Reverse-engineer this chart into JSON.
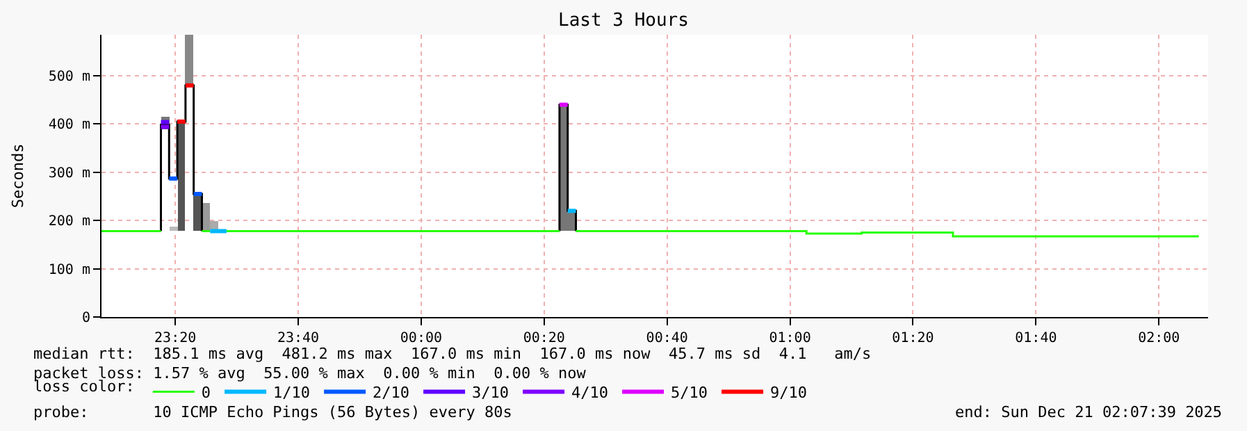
{
  "chart_data": {
    "type": "step",
    "title": "Last 3 Hours",
    "ylabel": "Seconds",
    "legend_title": "loss color:",
    "legend": "bottom",
    "grid": true,
    "xlim": [
      "2025-12-20T23:08",
      "2025-12-21T02:08"
    ],
    "xticks": [
      {
        "value": "2025-12-20T23:20",
        "label": "23:20"
      },
      {
        "value": "2025-12-20T23:40",
        "label": "23:40"
      },
      {
        "value": "2025-12-21T00:00",
        "label": "00:00"
      },
      {
        "value": "2025-12-21T00:20",
        "label": "00:20"
      },
      {
        "value": "2025-12-21T00:40",
        "label": "00:40"
      },
      {
        "value": "2025-12-21T01:00",
        "label": "01:00"
      },
      {
        "value": "2025-12-21T01:20",
        "label": "01:20"
      },
      {
        "value": "2025-12-21T01:40",
        "label": "01:40"
      },
      {
        "value": "2025-12-21T02:00",
        "label": "02:00"
      }
    ],
    "ylim": [
      0,
      585
    ],
    "yticks": [
      {
        "value": 0,
        "label": "0"
      },
      {
        "value": 100,
        "label": "100 m"
      },
      {
        "value": 200,
        "label": "200 m"
      },
      {
        "value": 300,
        "label": "300 m"
      },
      {
        "value": 400,
        "label": "400 m"
      },
      {
        "value": 500,
        "label": "500 m"
      }
    ],
    "series": [
      {
        "type": "bar",
        "x": [
          "2025-12-20T23:17:40",
          "2025-12-20T23:19:00",
          "2025-12-20T23:20:20",
          "2025-12-20T23:21:40",
          "2025-12-20T23:23:00",
          "2025-12-20T23:24:20",
          "2025-12-20T23:25:40",
          "2025-12-21T00:22:30",
          "2025-12-21T00:23:50"
        ],
        "base": [
          390,
          178,
          178,
          480,
          178,
          178,
          178,
          178,
          178
        ],
        "values": [
          25,
          10,
          230,
          105,
          77,
          58,
          21,
          262,
          42
        ],
        "colors": [
          "#777777",
          "#bbbbbb",
          "#555555",
          "#888888",
          "#555555",
          "#999999",
          "#aaaaaa",
          "#777777",
          "#777777"
        ]
      },
      {
        "color": "#000000",
        "x": [
          "2025-12-20T23:17:40",
          "2025-12-20T23:17:40",
          "2025-12-20T23:19:00",
          "2025-12-20T23:20:20",
          "2025-12-20T23:21:40",
          "2025-12-20T23:23:00",
          "2025-12-20T23:24:20"
        ],
        "values": [
          178,
          398,
          287,
          405,
          480,
          255,
          178
        ]
      },
      {
        "color": "#000000",
        "x": [
          "2025-12-21T00:22:30",
          "2025-12-21T00:22:30",
          "2025-12-21T00:23:50",
          "2025-12-21T00:25:10"
        ],
        "values": [
          178,
          440,
          220,
          178
        ]
      },
      {
        "name": "0",
        "color": "#26ff00",
        "x": [
          "2025-12-20T23:08",
          "2025-12-20T23:17:40"
        ],
        "values": [
          178,
          178
        ]
      },
      {
        "color": "#26ff00",
        "x": [
          "2025-12-20T23:24:20",
          "2025-12-20T23:25:40"
        ],
        "values": [
          178,
          178
        ]
      },
      {
        "color": "#26ff00",
        "x": [
          "2025-12-20T23:28:20",
          "2025-12-21T00:22:30"
        ],
        "values": [
          178,
          178
        ]
      },
      {
        "color": "#26ff00",
        "x": [
          "2025-12-21T00:25:10",
          "2025-12-21T01:02:40",
          "2025-12-21T01:11:40",
          "2025-12-21T01:26:30",
          "2025-12-21T02:06:30"
        ],
        "values": [
          178,
          173,
          175,
          167,
          167
        ]
      },
      {
        "name": "1/10",
        "color": "#00b8ff",
        "x": [
          "2025-12-20T23:25:40",
          "2025-12-20T23:28:20"
        ],
        "values": [
          178,
          178
        ]
      },
      {
        "color": "#00b8ff",
        "x": [
          "2025-12-21T00:23:50",
          "2025-12-21T00:25:10"
        ],
        "values": [
          220,
          220
        ]
      },
      {
        "name": "2/10",
        "color": "#0059ff",
        "x": [
          "2025-12-20T23:19:00",
          "2025-12-20T23:20:20"
        ],
        "values": [
          287,
          287
        ]
      },
      {
        "color": "#0059ff",
        "x": [
          "2025-12-20T23:23:00",
          "2025-12-20T23:24:20"
        ],
        "values": [
          255,
          255
        ]
      },
      {
        "name": "3/10",
        "color": "#5e00ff",
        "x": [
          "2025-12-20T23:17:40",
          "2025-12-20T23:19:00"
        ],
        "values": [
          404,
          404
        ]
      },
      {
        "name": "4/10",
        "color": "#7e00ff",
        "x": [
          "2025-12-20T23:17:40",
          "2025-12-20T23:19:00"
        ],
        "values": [
          394,
          394
        ]
      },
      {
        "name": "5/10",
        "color": "#dd00ff",
        "x": [
          "2025-12-21T00:22:30",
          "2025-12-21T00:23:50"
        ],
        "values": [
          440,
          440
        ]
      },
      {
        "name": "9/10",
        "color": "#ff0000",
        "x": [
          "2025-12-20T23:20:20",
          "2025-12-20T23:21:40"
        ],
        "values": [
          405,
          405
        ]
      },
      {
        "color": "#ff0000",
        "x": [
          "2025-12-20T23:21:40",
          "2025-12-20T23:23:00"
        ],
        "values": [
          480,
          480
        ]
      }
    ],
    "annotations": [
      "median rtt:  185.1 ms avg  481.2 ms max  167.0 ms min  167.0 ms now  45.7 ms sd  4.1   am/s",
      "packet loss: 1.57 % avg  55.00 % max  0.00 % min  0.00 % now",
      "probe:       10 ICMP Echo Pings (56 Bytes) every 80s",
      "end: Sun Dec 21 02:07:39 2025"
    ]
  }
}
